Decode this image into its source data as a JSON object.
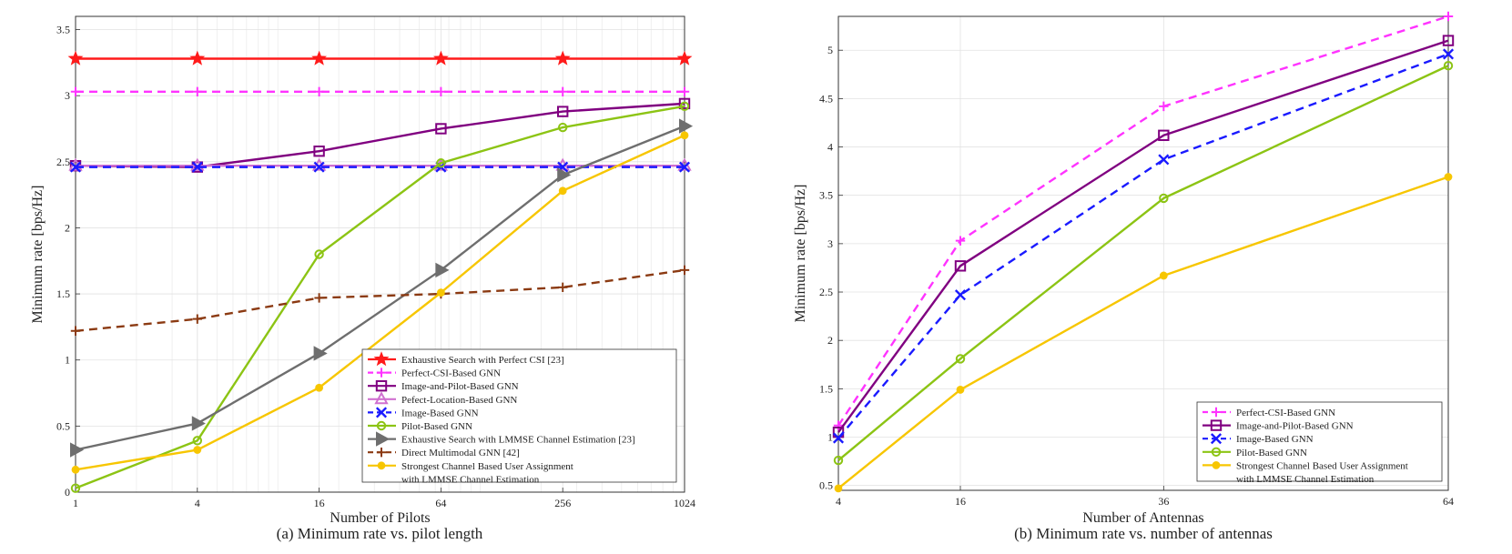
{
  "colors": {
    "exhaustive_perfect": "#ff1a1a",
    "perfect_csi": "#ff33ff",
    "image_pilot": "#800080",
    "location": "#d070d0",
    "image": "#1a1aff",
    "pilot": "#8cc414",
    "exhaustive_lmmse": "#6e6e6e",
    "multimodal": "#8b3a12",
    "strongest": "#f7c600"
  },
  "chart_data": [
    {
      "type": "line",
      "caption": "(a) Minimum rate vs. pilot length",
      "xlabel": "Number of Pilots",
      "ylabel": "Minimum rate [bps/Hz]",
      "x_scale": "log2",
      "x": [
        1,
        4,
        16,
        64,
        256,
        1024
      ],
      "x_ticks": [
        "1",
        "4",
        "16",
        "64",
        "256",
        "1024"
      ],
      "xlim": [
        1,
        1024
      ],
      "ylim": [
        0,
        3.6
      ],
      "y_ticks": [
        "0",
        "0.5",
        "1",
        "1.5",
        "2",
        "2.5",
        "3",
        "3.5"
      ],
      "grid": true,
      "legend_position": "bottom-right",
      "series": [
        {
          "name": "Exhaustive Search with Perfect CSI [23]",
          "values": [
            3.28,
            3.28,
            3.28,
            3.28,
            3.28,
            3.28
          ],
          "color_key": "exhaustive_perfect",
          "dash": "solid",
          "marker": "star"
        },
        {
          "name": "Perfect-CSI-Based GNN",
          "values": [
            3.03,
            3.03,
            3.03,
            3.03,
            3.03,
            3.03
          ],
          "color_key": "perfect_csi",
          "dash": "dashed",
          "marker": "plus"
        },
        {
          "name": "Image-and-Pilot-Based GNN",
          "values": [
            2.47,
            2.46,
            2.58,
            2.75,
            2.88,
            2.94
          ],
          "color_key": "image_pilot",
          "dash": "solid",
          "marker": "square"
        },
        {
          "name": "Pefect-Location-Based GNN",
          "values": [
            2.47,
            2.47,
            2.47,
            2.47,
            2.47,
            2.47
          ],
          "color_key": "location",
          "dash": "solid",
          "marker": "triangle"
        },
        {
          "name": "Image-Based GNN",
          "values": [
            2.46,
            2.46,
            2.46,
            2.46,
            2.46,
            2.46
          ],
          "color_key": "image",
          "dash": "dashed",
          "marker": "x"
        },
        {
          "name": "Pilot-Based GNN",
          "values": [
            0.03,
            0.39,
            1.8,
            2.49,
            2.76,
            2.92
          ],
          "color_key": "pilot",
          "dash": "solid",
          "marker": "circle"
        },
        {
          "name": "Exhaustive Search with LMMSE Channel Estimation [23]",
          "values": [
            0.32,
            0.52,
            1.05,
            1.68,
            2.4,
            2.77
          ],
          "color_key": "exhaustive_lmmse",
          "dash": "solid",
          "marker": "triangle-right"
        },
        {
          "name": "Direct Multimodal GNN [42]",
          "values": [
            1.22,
            1.31,
            1.47,
            1.5,
            1.55,
            1.68
          ],
          "color_key": "multimodal",
          "dash": "dashed",
          "marker": "plus"
        },
        {
          "name": "Strongest Channel Based User Assignment\nwith LMMSE Channel Estimation",
          "values": [
            0.17,
            0.32,
            0.79,
            1.51,
            2.28,
            2.7
          ],
          "color_key": "strongest",
          "dash": "solid",
          "marker": "dot"
        }
      ]
    },
    {
      "type": "line",
      "caption": "(b) Minimum rate vs. number of antennas",
      "xlabel": "Number of Antennas",
      "ylabel": "Minimum rate [bps/Hz]",
      "x_scale": "linear",
      "x": [
        4,
        16,
        36,
        64
      ],
      "x_ticks": [
        "4",
        "16",
        "36",
        "64"
      ],
      "xlim": [
        4,
        64
      ],
      "ylim": [
        0.45,
        5.35
      ],
      "y_ticks": [
        "0.5",
        "1",
        "1.5",
        "2",
        "2.5",
        "3",
        "3.5",
        "4",
        "4.5",
        "5"
      ],
      "grid": true,
      "legend_position": "bottom-right",
      "series": [
        {
          "name": "Perfect-CSI-Based GNN",
          "values": [
            1.12,
            3.03,
            4.42,
            5.35
          ],
          "color_key": "perfect_csi",
          "dash": "dashed",
          "marker": "plus"
        },
        {
          "name": "Image-and-Pilot-Based GNN",
          "values": [
            1.05,
            2.77,
            4.12,
            5.1
          ],
          "color_key": "image_pilot",
          "dash": "solid",
          "marker": "square"
        },
        {
          "name": "Image-Based GNN",
          "values": [
            0.99,
            2.47,
            3.87,
            4.96
          ],
          "color_key": "image",
          "dash": "dashed",
          "marker": "x"
        },
        {
          "name": "Pilot-Based GNN",
          "values": [
            0.76,
            1.81,
            3.47,
            4.84
          ],
          "color_key": "pilot",
          "dash": "solid",
          "marker": "circle"
        },
        {
          "name": "Strongest Channel Based User Assignment\nwith LMMSE Channel Estimation",
          "values": [
            0.47,
            1.49,
            2.67,
            3.69
          ],
          "color_key": "strongest",
          "dash": "solid",
          "marker": "dot"
        }
      ]
    }
  ]
}
